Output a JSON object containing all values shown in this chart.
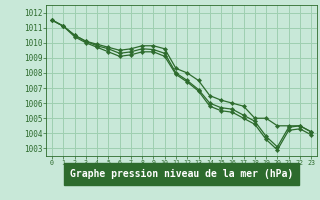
{
  "bg_color": "#c8e8d8",
  "label_bg_color": "#2d6b2d",
  "grid_color": "#9ecfb0",
  "line_color": "#2d6b2d",
  "title": "Graphe pression niveau de la mer (hPa)",
  "ylim": [
    1002.5,
    1012.5
  ],
  "xlim": [
    -0.5,
    23.5
  ],
  "yticks": [
    1003,
    1004,
    1005,
    1006,
    1007,
    1008,
    1009,
    1010,
    1011,
    1012
  ],
  "xticks": [
    0,
    1,
    2,
    3,
    4,
    5,
    6,
    7,
    8,
    9,
    10,
    11,
    12,
    13,
    14,
    15,
    16,
    17,
    18,
    19,
    20,
    21,
    22,
    23
  ],
  "series1": [
    1011.5,
    1011.1,
    1010.5,
    1010.1,
    1009.9,
    1009.7,
    1009.5,
    1009.6,
    1009.8,
    1009.8,
    1009.6,
    1008.3,
    1008.0,
    1007.5,
    1006.5,
    1006.2,
    1006.0,
    1005.8,
    1005.0,
    1005.0,
    1004.5,
    1004.5,
    1004.5,
    1004.1
  ],
  "series2": [
    1011.5,
    1011.1,
    1010.5,
    1010.1,
    1009.8,
    1009.6,
    1009.3,
    1009.4,
    1009.6,
    1009.55,
    1009.3,
    1008.0,
    1007.5,
    1006.9,
    1006.0,
    1005.7,
    1005.6,
    1005.2,
    1004.8,
    1003.8,
    1003.1,
    1004.4,
    1004.5,
    1004.1
  ],
  "series3": [
    1011.5,
    1011.1,
    1010.4,
    1010.0,
    1009.7,
    1009.4,
    1009.1,
    1009.2,
    1009.4,
    1009.4,
    1009.1,
    1007.9,
    1007.4,
    1006.8,
    1005.8,
    1005.5,
    1005.4,
    1005.0,
    1004.6,
    1003.6,
    1002.9,
    1004.2,
    1004.3,
    1003.9
  ],
  "title_fontsize": 7.0,
  "tick_fontsize": 5.5,
  "xtick_fontsize": 4.8
}
